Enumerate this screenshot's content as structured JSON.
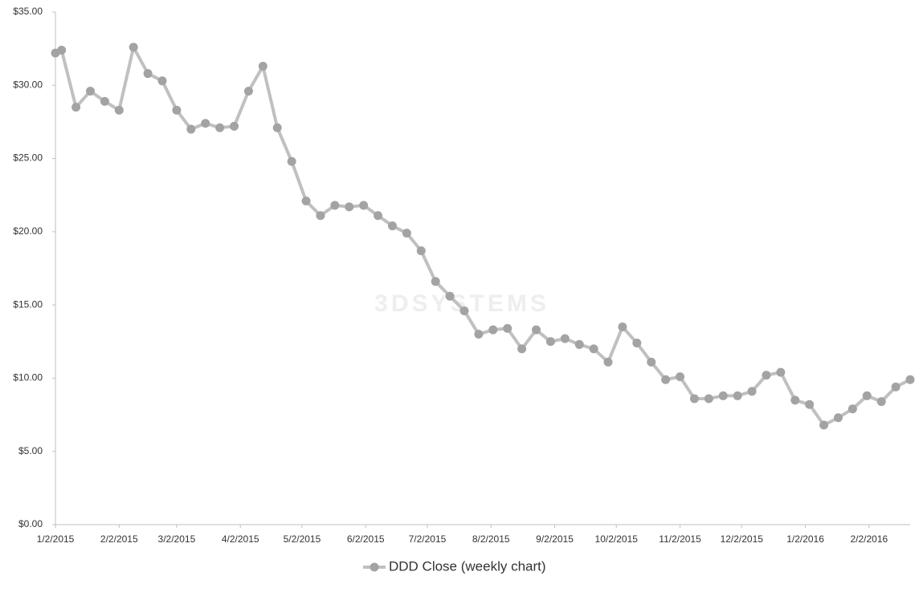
{
  "chart_data": {
    "type": "line",
    "watermark": "3DSYSTEMS",
    "x": [
      "1/2/2015",
      "1/5/2015",
      "1/12/2015",
      "1/19/2015",
      "1/26/2015",
      "2/2/2015",
      "2/9/2015",
      "2/16/2015",
      "2/23/2015",
      "3/2/2015",
      "3/9/2015",
      "3/16/2015",
      "3/23/2015",
      "3/30/2015",
      "4/6/2015",
      "4/13/2015",
      "4/20/2015",
      "4/27/2015",
      "5/4/2015",
      "5/11/2015",
      "5/18/2015",
      "5/25/2015",
      "6/1/2015",
      "6/8/2015",
      "6/15/2015",
      "6/22/2015",
      "6/29/2015",
      "7/6/2015",
      "7/13/2015",
      "7/20/2015",
      "7/27/2015",
      "8/3/2015",
      "8/10/2015",
      "8/17/2015",
      "8/24/2015",
      "8/31/2015",
      "9/7/2015",
      "9/14/2015",
      "9/21/2015",
      "9/28/2015",
      "10/5/2015",
      "10/12/2015",
      "10/19/2015",
      "10/26/2015",
      "11/2/2015",
      "11/9/2015",
      "11/16/2015",
      "11/23/2015",
      "11/30/2015",
      "12/7/2015",
      "12/14/2015",
      "12/21/2015",
      "12/28/2015",
      "1/4/2016",
      "1/11/2016",
      "1/18/2016",
      "1/25/2016",
      "2/1/2016",
      "2/8/2016",
      "2/15/2016",
      "2/22/2016"
    ],
    "series": [
      {
        "name": "DDD Close (weekly chart)",
        "color": "#c0c0c0",
        "marker_color": "#a3a3a3",
        "values": [
          32.2,
          32.4,
          28.5,
          29.6,
          28.9,
          28.3,
          32.6,
          30.8,
          30.3,
          28.3,
          27.0,
          27.4,
          27.1,
          27.2,
          29.6,
          31.3,
          27.1,
          24.8,
          22.1,
          21.1,
          21.8,
          21.7,
          21.8,
          21.1,
          20.4,
          19.9,
          18.7,
          16.6,
          15.6,
          14.6,
          13.0,
          13.3,
          13.4,
          12.0,
          13.3,
          12.5,
          12.7,
          12.3,
          12.0,
          11.1,
          13.5,
          12.4,
          11.1,
          9.9,
          10.1,
          8.6,
          8.6,
          8.8,
          8.8,
          9.1,
          10.2,
          10.4,
          8.5,
          8.2,
          6.8,
          7.3,
          7.9,
          8.8,
          8.4,
          9.4,
          9.9
        ]
      }
    ],
    "xlim": [
      "1/2/2015",
      "2/22/2016"
    ],
    "xticks": [
      "1/2/2015",
      "2/2/2015",
      "3/2/2015",
      "4/2/2015",
      "5/2/2015",
      "6/2/2015",
      "7/2/2015",
      "8/2/2015",
      "9/2/2015",
      "10/2/2015",
      "11/2/2015",
      "12/2/2015",
      "1/2/2016",
      "2/2/2016"
    ],
    "ylim": [
      0,
      35
    ],
    "yticks": [
      {
        "value": 0,
        "label": "$0.00"
      },
      {
        "value": 5,
        "label": "$5.00"
      },
      {
        "value": 10,
        "label": "$10.00"
      },
      {
        "value": 15,
        "label": "$15.00"
      },
      {
        "value": 20,
        "label": "$20.00"
      },
      {
        "value": 25,
        "label": "$25.00"
      },
      {
        "value": 30,
        "label": "$30.00"
      },
      {
        "value": 35,
        "label": "$35.00"
      }
    ],
    "grid": false,
    "legend": "bottom"
  }
}
